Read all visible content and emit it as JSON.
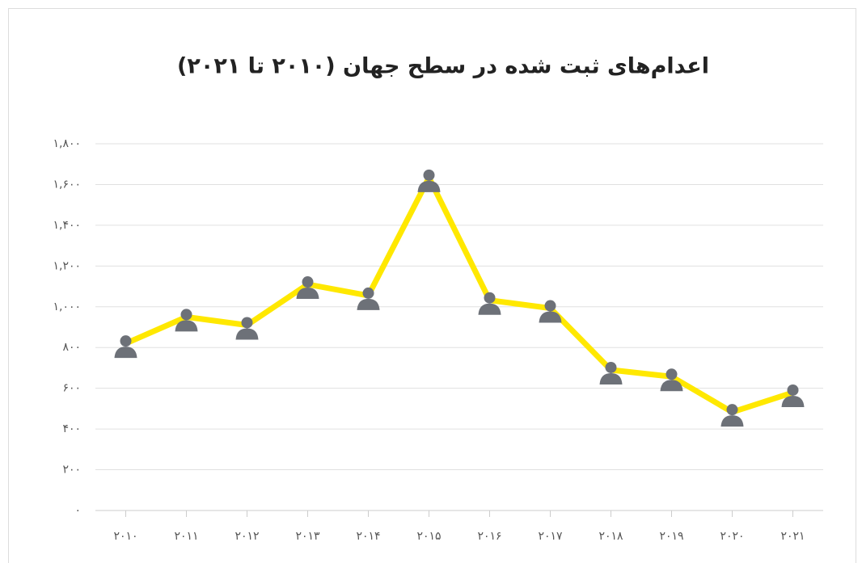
{
  "chart_data": {
    "type": "line",
    "title": "اعدام‌های ثبت شده در سطح جهان (۲۰۱۰ تا ۲۰۲۱)",
    "categories": [
      "۲۰۱۰",
      "۲۰۱۱",
      "۲۰۱۲",
      "۲۰۱۳",
      "۲۰۱۴",
      "۲۰۱۵",
      "۲۰۱۶",
      "۲۰۱۷",
      "۲۰۱۸",
      "۲۰۱۹",
      "۲۰۲۰",
      "۲۰۲۱"
    ],
    "series": [
      {
        "color": "#ffe800",
        "marker_color": "#6d7178",
        "values": [
          820,
          950,
          910,
          1110,
          1055,
          1634,
          1032,
          993,
          690,
          657,
          483,
          579
        ]
      }
    ],
    "ylim": [
      0,
      1800
    ],
    "yticks": [
      {
        "value": 0,
        "label": "۰"
      },
      {
        "value": 200,
        "label": "۲۰۰"
      },
      {
        "value": 400,
        "label": "۴۰۰"
      },
      {
        "value": 600,
        "label": "۶۰۰"
      },
      {
        "value": 800,
        "label": "۸۰۰"
      },
      {
        "value": 1000,
        "label": "۱,۰۰۰"
      },
      {
        "value": 1200,
        "label": "۱,۲۰۰"
      },
      {
        "value": 1400,
        "label": "۱,۴۰۰"
      },
      {
        "value": 1600,
        "label": "۱,۶۰۰"
      },
      {
        "value": 1800,
        "label": "۱,۸۰۰"
      }
    ],
    "grid": true
  }
}
